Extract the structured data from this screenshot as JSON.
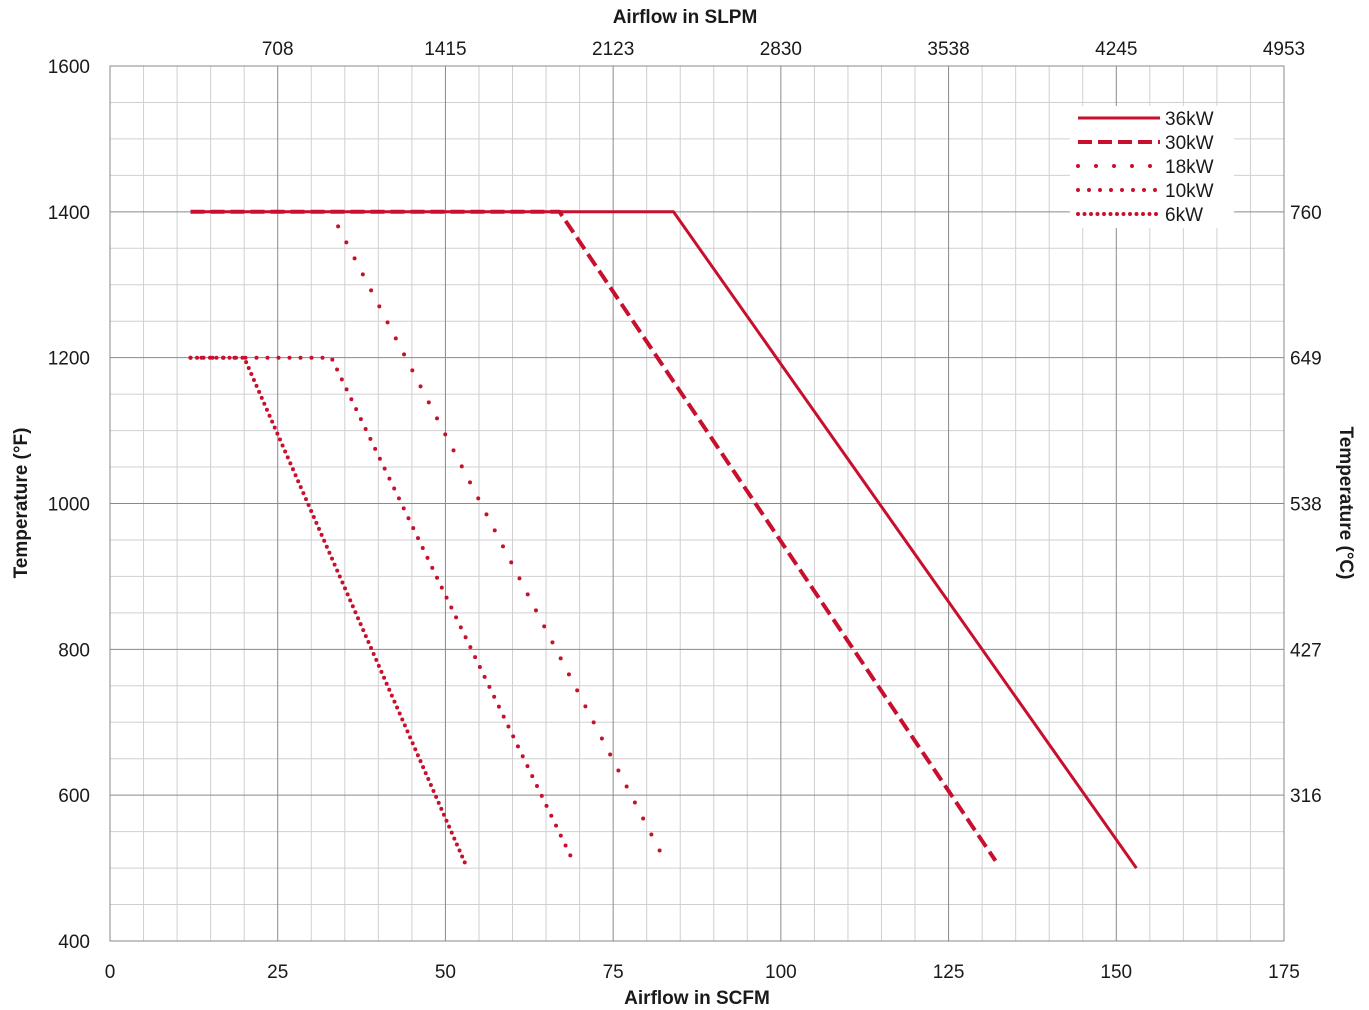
{
  "chart_data": {
    "type": "line",
    "xlabel": "Airflow in SCFM",
    "x2label": "Airflow in SLPM",
    "ylabel": "Temperature (°F)",
    "y2label": "Temperature (°C)",
    "xlim": [
      0,
      175
    ],
    "ylim": [
      400,
      1600
    ],
    "x_ticks": [
      0,
      25,
      50,
      75,
      100,
      125,
      150,
      175
    ],
    "x_tick_labels": [
      "0",
      "25",
      "50",
      "75",
      "100",
      "125",
      "150",
      "175"
    ],
    "y_ticks": [
      400,
      600,
      800,
      1000,
      1200,
      1400,
      1600
    ],
    "y_tick_labels": [
      "400",
      "600",
      "800",
      "1000",
      "1200",
      "1400",
      "1600"
    ],
    "x2_ticks": [
      25,
      50,
      75,
      100,
      125,
      150,
      175
    ],
    "x2_tick_labels": [
      "708",
      "1415",
      "2123",
      "2830",
      "3538",
      "4245",
      "4953"
    ],
    "y2_ticks": [
      600,
      800,
      1000,
      1200,
      1400
    ],
    "y2_tick_labels": [
      "316",
      "427",
      "538",
      "649",
      "760"
    ],
    "grid": true,
    "legend_position": "top-right",
    "color": "#c8102e",
    "series": [
      {
        "name": "36kW",
        "style": "solid",
        "points": [
          [
            12,
            1400
          ],
          [
            84,
            1400
          ],
          [
            153,
            500
          ]
        ]
      },
      {
        "name": "30kW",
        "style": "dashed",
        "points": [
          [
            12,
            1400
          ],
          [
            67,
            1400
          ],
          [
            132,
            510
          ]
        ]
      },
      {
        "name": "18kW",
        "style": "dotted-sparse",
        "points": [
          [
            34,
            1380
          ],
          [
            83,
            505
          ]
        ]
      },
      {
        "name": "10kW",
        "style": "dotted",
        "points": [
          [
            12,
            1200
          ],
          [
            33,
            1200
          ],
          [
            69,
            510
          ]
        ]
      },
      {
        "name": "6kW",
        "style": "dotted-dense",
        "points": [
          [
            12,
            1200
          ],
          [
            20,
            1200
          ],
          [
            53,
            505
          ]
        ]
      }
    ]
  }
}
